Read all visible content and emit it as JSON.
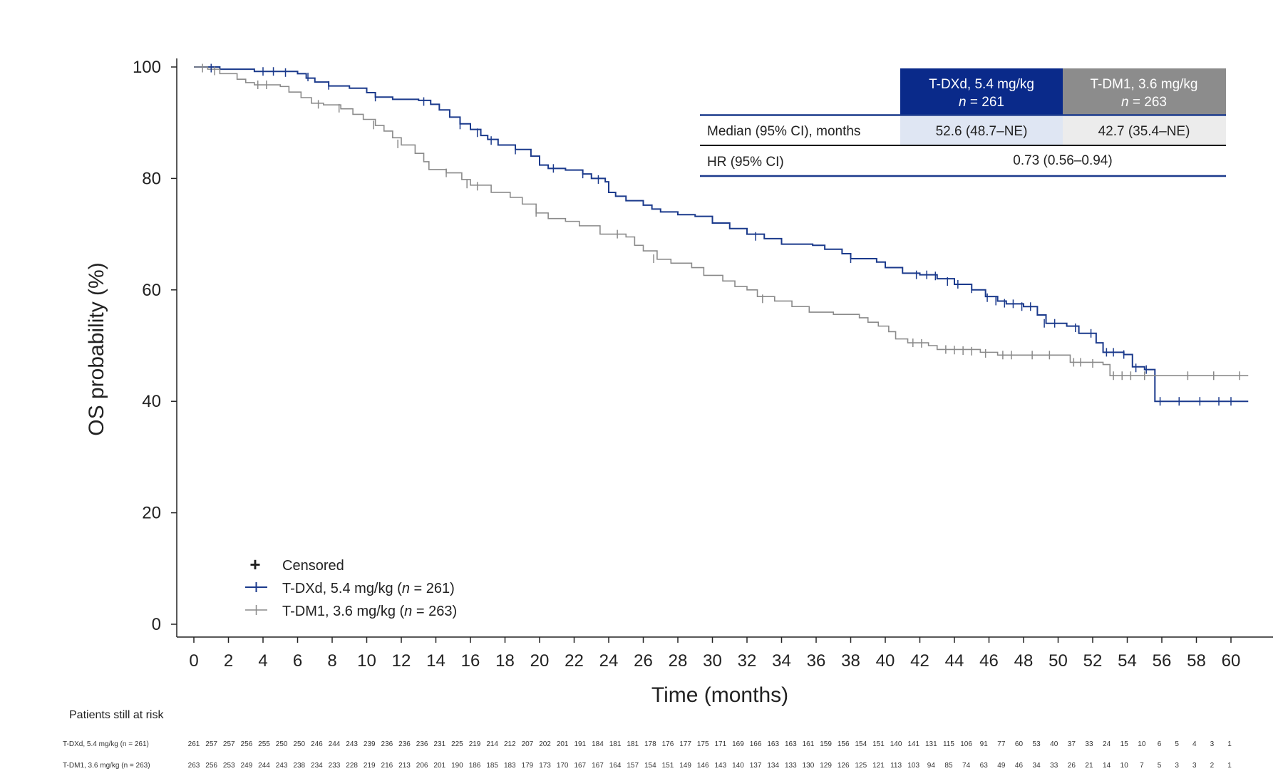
{
  "chart_data": {
    "type": "line",
    "step": true,
    "xlabel": "Time (months)",
    "ylabel": "OS probability (%)",
    "xlim": [
      -1,
      62
    ],
    "ylim": [
      0,
      100
    ],
    "x_ticks": [
      "0",
      "2",
      "4",
      "6",
      "8",
      "10",
      "12",
      "14",
      "16",
      "18",
      "20",
      "22",
      "24",
      "26",
      "28",
      "30",
      "32",
      "34",
      "36",
      "38",
      "40",
      "42",
      "44",
      "46",
      "48",
      "50",
      "52",
      "54",
      "56",
      "58",
      "60"
    ],
    "y_ticks": [
      "0",
      "20",
      "40",
      "60",
      "80",
      "100"
    ],
    "colors": {
      "tdxd": "#1b3a8c",
      "tdm1": "#8a8a8a",
      "table_head_tdxd": "#0a2a8a",
      "table_head_tdm1": "#8c8c8c",
      "cell_tdxd": "#dfe6f3",
      "cell_tdm1": "#ececec"
    },
    "legend": {
      "censored": "Censored",
      "censored_marker": "+",
      "items": [
        {
          "series": "tdxd",
          "label_pre": "T-DXd, 5.4 mg/kg (",
          "label_n": "n",
          "label_post": " = 261)"
        },
        {
          "series": "tdm1",
          "label_pre": "T-DM1, 3.6 mg/kg (",
          "label_n": "n",
          "label_post": " = 263)"
        }
      ]
    },
    "series": [
      {
        "key": "tdxd",
        "name": "T-DXd, 5.4 mg/kg",
        "points": [
          [
            0,
            100
          ],
          [
            1.5,
            99.6
          ],
          [
            3.5,
            99.2
          ],
          [
            6,
            98.8
          ],
          [
            6.5,
            98
          ],
          [
            7,
            97.3
          ],
          [
            7.8,
            96.6
          ],
          [
            9,
            96.2
          ],
          [
            10,
            95.4
          ],
          [
            10.5,
            94.6
          ],
          [
            11.5,
            94.2
          ],
          [
            12,
            94.2
          ],
          [
            13,
            94
          ],
          [
            13.7,
            93.3
          ],
          [
            14.2,
            92.3
          ],
          [
            14.8,
            91
          ],
          [
            15.4,
            89.8
          ],
          [
            16,
            88.8
          ],
          [
            16.6,
            87.7
          ],
          [
            17,
            87
          ],
          [
            17.6,
            86
          ],
          [
            18.6,
            85.2
          ],
          [
            19.5,
            84
          ],
          [
            20,
            82.4
          ],
          [
            20.5,
            81.8
          ],
          [
            21.5,
            81.5
          ],
          [
            22.5,
            80.8
          ],
          [
            23,
            80
          ],
          [
            23.8,
            79.4
          ],
          [
            24,
            77.5
          ],
          [
            24.4,
            76.8
          ],
          [
            25,
            76
          ],
          [
            26,
            75.2
          ],
          [
            26.5,
            74.5
          ],
          [
            27,
            74
          ],
          [
            28,
            73.5
          ],
          [
            29,
            73.2
          ],
          [
            30,
            72
          ],
          [
            31,
            71
          ],
          [
            32,
            70
          ],
          [
            33,
            69.2
          ],
          [
            34,
            68.2
          ],
          [
            35.8,
            68
          ],
          [
            36.5,
            67.3
          ],
          [
            37.5,
            66.5
          ],
          [
            38,
            65.6
          ],
          [
            39.5,
            65
          ],
          [
            40,
            64
          ],
          [
            41,
            63
          ],
          [
            42,
            62.7
          ],
          [
            43,
            62
          ],
          [
            44,
            61
          ],
          [
            45,
            60
          ],
          [
            45.8,
            58.8
          ],
          [
            46.5,
            58
          ],
          [
            47,
            57.5
          ],
          [
            48,
            57
          ],
          [
            48.8,
            55.5
          ],
          [
            49.3,
            54
          ],
          [
            50.5,
            53.5
          ],
          [
            51.2,
            52.2
          ],
          [
            52.2,
            50.5
          ],
          [
            52.6,
            48.8
          ],
          [
            53.8,
            48.4
          ],
          [
            54.3,
            46.2
          ],
          [
            55,
            45.7
          ],
          [
            55.6,
            40
          ],
          [
            61,
            40
          ]
        ],
        "censors": [
          [
            1,
            99.8
          ],
          [
            4,
            99.2
          ],
          [
            4.6,
            99.2
          ],
          [
            5.3,
            99
          ],
          [
            6.6,
            98.2
          ],
          [
            7.8,
            96.7
          ],
          [
            10.5,
            94.6
          ],
          [
            13.3,
            93.8
          ],
          [
            15.4,
            89.6
          ],
          [
            16.4,
            88.2
          ],
          [
            17.2,
            86.8
          ],
          [
            18.6,
            85.1
          ],
          [
            20.8,
            81.8
          ],
          [
            22.5,
            80.8
          ],
          [
            23.4,
            79.8
          ],
          [
            32.5,
            69.6
          ],
          [
            38,
            65.6
          ],
          [
            41.8,
            62.7
          ],
          [
            42.4,
            62.7
          ],
          [
            42.9,
            62.5
          ],
          [
            43.6,
            61.5
          ],
          [
            44.2,
            61
          ],
          [
            45,
            60.2
          ],
          [
            45.9,
            58.6
          ],
          [
            46.4,
            58
          ],
          [
            46.9,
            57.6
          ],
          [
            47.4,
            57.5
          ],
          [
            47.9,
            57
          ],
          [
            48.4,
            57
          ],
          [
            49.2,
            54
          ],
          [
            49.8,
            54
          ],
          [
            51,
            53.2
          ],
          [
            51.9,
            52.2
          ],
          [
            52.8,
            48.8
          ],
          [
            53.2,
            48.8
          ],
          [
            53.8,
            48.4
          ],
          [
            54.5,
            46
          ],
          [
            55.1,
            45.7
          ],
          [
            55.9,
            40
          ],
          [
            57,
            40
          ],
          [
            58.2,
            40
          ],
          [
            59.3,
            40
          ],
          [
            60,
            40
          ]
        ]
      },
      {
        "key": "tdm1",
        "name": "T-DM1, 3.6 mg/kg",
        "points": [
          [
            0,
            100
          ],
          [
            0.8,
            99.6
          ],
          [
            1.5,
            98.8
          ],
          [
            2.5,
            97.8
          ],
          [
            3,
            97.2
          ],
          [
            3.5,
            96.8
          ],
          [
            5,
            96.5
          ],
          [
            5.5,
            95.5
          ],
          [
            6.2,
            94.5
          ],
          [
            6.8,
            93.5
          ],
          [
            7.5,
            93.2
          ],
          [
            8.5,
            92.5
          ],
          [
            9.2,
            91.5
          ],
          [
            9.8,
            90.6
          ],
          [
            10.5,
            89.5
          ],
          [
            11,
            88.5
          ],
          [
            11.5,
            87.3
          ],
          [
            12,
            86
          ],
          [
            12.8,
            84.5
          ],
          [
            13.3,
            83
          ],
          [
            13.6,
            81.6
          ],
          [
            14.6,
            81
          ],
          [
            15.5,
            79.8
          ],
          [
            16,
            78.8
          ],
          [
            17.2,
            77.5
          ],
          [
            18.3,
            76.6
          ],
          [
            19,
            75.4
          ],
          [
            19.8,
            73.8
          ],
          [
            20.5,
            72.8
          ],
          [
            21.5,
            72.3
          ],
          [
            22.3,
            71.5
          ],
          [
            23.5,
            70
          ],
          [
            25,
            69.5
          ],
          [
            25.5,
            68
          ],
          [
            26,
            67
          ],
          [
            26.8,
            65.5
          ],
          [
            27.6,
            64.8
          ],
          [
            28.8,
            64
          ],
          [
            29.5,
            62.6
          ],
          [
            30.6,
            61.6
          ],
          [
            31.3,
            60.6
          ],
          [
            32,
            60
          ],
          [
            32.6,
            58.8
          ],
          [
            33.6,
            58
          ],
          [
            34.6,
            57
          ],
          [
            35.6,
            56
          ],
          [
            37,
            55.6
          ],
          [
            38.5,
            55
          ],
          [
            39,
            54.2
          ],
          [
            39.6,
            53.5
          ],
          [
            40.2,
            52.5
          ],
          [
            40.6,
            51.2
          ],
          [
            41.3,
            50.5
          ],
          [
            42.5,
            50
          ],
          [
            43,
            49.3
          ],
          [
            45.5,
            48.8
          ],
          [
            46.5,
            48.3
          ],
          [
            50,
            48.3
          ],
          [
            50.7,
            47
          ],
          [
            52.6,
            46.6
          ],
          [
            53,
            44.6
          ],
          [
            61,
            44.6
          ]
        ],
        "censors": [
          [
            0.5,
            99.8
          ],
          [
            1.2,
            99.3
          ],
          [
            3.7,
            96.8
          ],
          [
            4.2,
            96.8
          ],
          [
            7.2,
            93.3
          ],
          [
            8.4,
            92.6
          ],
          [
            10.4,
            89.6
          ],
          [
            11.8,
            86.2
          ],
          [
            14.6,
            81
          ],
          [
            15.8,
            79
          ],
          [
            16.4,
            78.6
          ],
          [
            19.8,
            73.9
          ],
          [
            24.5,
            70
          ],
          [
            26.6,
            65.6
          ],
          [
            32.9,
            58.4
          ],
          [
            41.6,
            50.5
          ],
          [
            42.1,
            50.4
          ],
          [
            43.5,
            49.3
          ],
          [
            44,
            49.2
          ],
          [
            44.5,
            49.1
          ],
          [
            45,
            49
          ],
          [
            45.8,
            48.6
          ],
          [
            46.8,
            48.3
          ],
          [
            47.3,
            48.3
          ],
          [
            48.5,
            48.3
          ],
          [
            49.5,
            48.3
          ],
          [
            50.9,
            47
          ],
          [
            51.3,
            47
          ],
          [
            52,
            46.8
          ],
          [
            53.2,
            44.6
          ],
          [
            53.7,
            44.6
          ],
          [
            54.2,
            44.6
          ],
          [
            55,
            44.6
          ],
          [
            57.5,
            44.6
          ],
          [
            59,
            44.6
          ],
          [
            60.5,
            44.6
          ]
        ]
      }
    ],
    "table": {
      "head_tdxd_line1": "T-DXd, 5.4 mg/kg",
      "head_tdxd_n": "n",
      "head_tdxd_line2": " = 261",
      "head_tdm1_line1": "T-DM1, 3.6 mg/kg",
      "head_tdm1_n": "n",
      "head_tdm1_line2": " = 263",
      "median_label": "Median (95% CI), months",
      "median_tdxd": "52.6 (48.7–NE)",
      "median_tdm1": "42.7 (35.4–NE)",
      "hr_label": "HR (95% CI)",
      "hr_value": "0.73 (0.56–0.94)"
    },
    "risk_table": {
      "title": "Patients still at risk",
      "rows": [
        {
          "label": "T-DXd, 5.4 mg/kg (n = 261)",
          "values": [
            "261",
            "257",
            "257",
            "256",
            "255",
            "250",
            "250",
            "246",
            "244",
            "243",
            "239",
            "236",
            "236",
            "236",
            "231",
            "225",
            "219",
            "214",
            "212",
            "207",
            "202",
            "201",
            "191",
            "184",
            "181",
            "181",
            "178",
            "176",
            "177",
            "175",
            "171",
            "169",
            "166",
            "163",
            "163",
            "161",
            "159",
            "156",
            "154",
            "151",
            "140",
            "141",
            "131",
            "115",
            "106",
            "91",
            "77",
            "60",
            "53",
            "40",
            "37",
            "33",
            "24",
            "15",
            "10",
            "6",
            "5",
            "4",
            "3",
            "1"
          ]
        },
        {
          "label": "T-DM1, 3.6 mg/kg (n = 263)",
          "values": [
            "263",
            "256",
            "253",
            "249",
            "244",
            "243",
            "238",
            "234",
            "233",
            "228",
            "219",
            "216",
            "213",
            "206",
            "201",
            "190",
            "186",
            "185",
            "183",
            "179",
            "173",
            "170",
            "167",
            "167",
            "164",
            "157",
            "154",
            "151",
            "149",
            "146",
            "143",
            "140",
            "137",
            "134",
            "133",
            "130",
            "129",
            "126",
            "125",
            "121",
            "113",
            "103",
            "94",
            "85",
            "74",
            "63",
            "49",
            "46",
            "34",
            "33",
            "26",
            "21",
            "14",
            "10",
            "7",
            "5",
            "3",
            "3",
            "2",
            "1"
          ]
        }
      ]
    }
  }
}
